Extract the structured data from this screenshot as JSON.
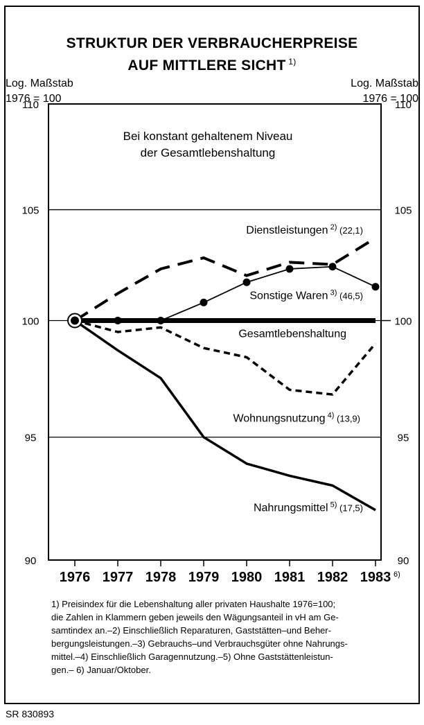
{
  "chart_data": {
    "type": "line",
    "title": "STRUKTUR DER VERBRAUCHERPREISE",
    "subtitle": "AUF MITTLERE SICHT",
    "title_footnote": "1)",
    "yscale": "log",
    "ylim": [
      90,
      110
    ],
    "yticks": [
      90,
      95,
      100,
      105,
      110
    ],
    "ylabel_left": [
      "Log. Maßstab",
      "1976 = 100"
    ],
    "ylabel_right": [
      "Log. Maßstab",
      "1976 = 100"
    ],
    "x": [
      1976,
      1977,
      1978,
      1979,
      1980,
      1981,
      1982,
      1983
    ],
    "x_labels": [
      "1976",
      "1977",
      "1978",
      "1979",
      "1980",
      "1981",
      "1982",
      "1983"
    ],
    "x_last_footnote": "6)",
    "grid": "horizontal",
    "note": [
      "Bei konstant gehaltenem Niveau",
      "der Gesamtlebenshaltung"
    ],
    "series": [
      {
        "name": "Dienstleistungen",
        "footnote": "2)",
        "weight": "(22,1)",
        "style": "long-dash",
        "values": [
          100,
          101.2,
          102.3,
          102.8,
          102.0,
          102.6,
          102.5,
          103.7
        ]
      },
      {
        "name": "Sonstige Waren",
        "footnote": "3)",
        "weight": "(46,5)",
        "style": "line-dots",
        "values": [
          100,
          100,
          100,
          100.8,
          101.7,
          102.3,
          102.4,
          101.5
        ]
      },
      {
        "name": "Gesamtlebenshaltung",
        "footnote": "",
        "weight": "",
        "style": "thick",
        "values": [
          100,
          100,
          100,
          100,
          100,
          100,
          100,
          100
        ]
      },
      {
        "name": "Wohnungsnutzung",
        "footnote": "4)",
        "weight": "(13,9)",
        "style": "short-dash",
        "values": [
          100,
          99.5,
          99.7,
          98.8,
          98.4,
          97.0,
          96.8,
          99.0
        ]
      },
      {
        "name": "Nahrungsmittel",
        "footnote": "5)",
        "weight": "(17,5)",
        "style": "solid",
        "values": [
          100,
          98.7,
          97.5,
          95.0,
          93.9,
          93.4,
          93.0,
          92.0
        ]
      }
    ]
  },
  "footnotes": [
    "1) Preisindex für die Lebenshaltung aller privaten Haushalte 1976=100;",
    "die Zahlen in Klammern geben jeweils den Wägungsanteil in vH am Ge-",
    "samtindex an.–2) Einschließlich Reparaturen, Gaststätten–und Beher-",
    "bergungsleistungen.–3) Gebrauchs–und Verbrauchsgüter ohne Nahrungs-",
    "mittel.–4) Einschließlich Garagennutzung.–5) Ohne Gaststättenleistun-",
    "gen.– 6) Januar/Oktober."
  ],
  "source": "SR 830893"
}
